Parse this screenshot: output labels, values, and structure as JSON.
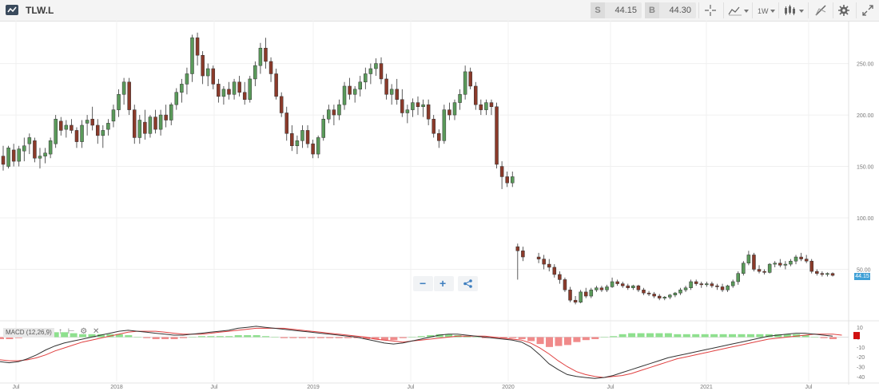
{
  "header": {
    "symbol": "TLW.L",
    "sell_tag": "S",
    "sell_price": "44.15",
    "buy_tag": "B",
    "buy_price": "44.30",
    "interval_label": "1W",
    "icons": [
      "crosshair-icon",
      "compare-icon",
      "interval-icon",
      "candlestick-type-icon",
      "draw-icon",
      "settings-icon",
      "fullscreen-icon"
    ]
  },
  "colors": {
    "up": "#5a9a5a",
    "down": "#8b3a2a",
    "macd_line": "#333333",
    "signal_line": "#e04040",
    "hist_pos": "#8ee08e",
    "hist_neg": "#f08a8a",
    "last_price_tag": "#3fa0d6"
  },
  "price_tag": "44.15",
  "zoom_controls": {
    "zoom_out": "−",
    "zoom_in": "+",
    "share_icon": "share-icon"
  },
  "macd_legend": {
    "label": "MACD (12,26,9)"
  },
  "chart_data": [
    {
      "type": "candlestick",
      "timeframe": "weekly",
      "x_ticks": [
        "Jul",
        "2018",
        "Jul",
        "2019",
        "Jul",
        "2020",
        "Jul",
        "2021",
        "Jul"
      ],
      "y_ticks": [
        "250.00",
        "200.00",
        "150.00",
        "100.00",
        "50.00"
      ],
      "ylim": [
        0,
        290
      ],
      "grid": true,
      "y_axis_position": "right",
      "last_price": 44.15,
      "ohlc": [
        [
          160,
          170,
          146,
          152
        ],
        [
          150,
          170,
          148,
          168
        ],
        [
          166,
          172,
          150,
          155
        ],
        [
          155,
          170,
          150,
          167
        ],
        [
          165,
          178,
          155,
          170
        ],
        [
          172,
          182,
          162,
          178
        ],
        [
          175,
          178,
          154,
          158
        ],
        [
          158,
          168,
          148,
          160
        ],
        [
          160,
          168,
          153,
          163
        ],
        [
          162,
          178,
          158,
          175
        ],
        [
          172,
          200,
          168,
          196
        ],
        [
          194,
          198,
          180,
          185
        ],
        [
          186,
          195,
          178,
          190
        ],
        [
          190,
          196,
          182,
          185
        ],
        [
          185,
          188,
          168,
          174
        ],
        [
          174,
          195,
          168,
          190
        ],
        [
          192,
          200,
          180,
          195
        ],
        [
          196,
          208,
          185,
          190
        ],
        [
          190,
          196,
          172,
          180
        ],
        [
          180,
          190,
          168,
          185
        ],
        [
          186,
          196,
          180,
          192
        ],
        [
          194,
          210,
          188,
          205
        ],
        [
          205,
          225,
          198,
          220
        ],
        [
          220,
          236,
          210,
          232
        ],
        [
          232,
          236,
          200,
          205
        ],
        [
          205,
          210,
          172,
          178
        ],
        [
          178,
          200,
          172,
          195
        ],
        [
          193,
          205,
          176,
          182
        ],
        [
          182,
          200,
          178,
          198
        ],
        [
          198,
          205,
          182,
          186
        ],
        [
          186,
          205,
          180,
          200
        ],
        [
          200,
          210,
          188,
          195
        ],
        [
          195,
          212,
          190,
          210
        ],
        [
          210,
          226,
          205,
          222
        ],
        [
          222,
          235,
          212,
          230
        ],
        [
          230,
          246,
          220,
          240
        ],
        [
          240,
          278,
          232,
          275
        ],
        [
          275,
          280,
          248,
          258
        ],
        [
          258,
          262,
          230,
          238
        ],
        [
          238,
          250,
          228,
          245
        ],
        [
          245,
          248,
          225,
          230
        ],
        [
          230,
          235,
          212,
          218
        ],
        [
          218,
          228,
          210,
          225
        ],
        [
          225,
          232,
          215,
          220
        ],
        [
          220,
          235,
          215,
          232
        ],
        [
          232,
          238,
          218,
          222
        ],
        [
          222,
          232,
          210,
          215
        ],
        [
          215,
          238,
          212,
          235
        ],
        [
          235,
          252,
          228,
          248
        ],
        [
          248,
          270,
          240,
          265
        ],
        [
          265,
          275,
          245,
          252
        ],
        [
          252,
          256,
          232,
          240
        ],
        [
          240,
          245,
          215,
          218
        ],
        [
          218,
          222,
          198,
          202
        ],
        [
          202,
          208,
          175,
          182
        ],
        [
          182,
          190,
          165,
          170
        ],
        [
          170,
          180,
          162,
          175
        ],
        [
          175,
          190,
          168,
          185
        ],
        [
          185,
          190,
          168,
          172
        ],
        [
          172,
          176,
          158,
          162
        ],
        [
          162,
          180,
          158,
          178
        ],
        [
          178,
          200,
          175,
          196
        ],
        [
          196,
          210,
          192,
          205
        ],
        [
          205,
          210,
          190,
          200
        ],
        [
          200,
          215,
          195,
          210
        ],
        [
          210,
          232,
          205,
          228
        ],
        [
          228,
          236,
          215,
          220
        ],
        [
          220,
          228,
          212,
          225
        ],
        [
          225,
          238,
          218,
          232
        ],
        [
          232,
          246,
          225,
          240
        ],
        [
          240,
          250,
          230,
          245
        ],
        [
          245,
          255,
          238,
          250
        ],
        [
          250,
          256,
          230,
          235
        ],
        [
          235,
          240,
          215,
          220
        ],
        [
          220,
          230,
          210,
          225
        ],
        [
          225,
          235,
          210,
          215
        ],
        [
          215,
          225,
          198,
          202
        ],
        [
          202,
          210,
          192,
          205
        ],
        [
          205,
          216,
          198,
          212
        ],
        [
          212,
          218,
          200,
          208
        ],
        [
          208,
          215,
          198,
          210
        ],
        [
          210,
          215,
          190,
          196
        ],
        [
          196,
          200,
          178,
          182
        ],
        [
          182,
          186,
          168,
          175
        ],
        [
          175,
          210,
          172,
          205
        ],
        [
          205,
          212,
          195,
          200
        ],
        [
          200,
          215,
          195,
          212
        ],
        [
          212,
          225,
          205,
          220
        ],
        [
          220,
          248,
          215,
          242
        ],
        [
          242,
          246,
          225,
          228
        ],
        [
          228,
          232,
          205,
          210
        ],
        [
          210,
          215,
          200,
          205
        ],
        [
          205,
          215,
          200,
          212
        ],
        [
          212,
          215,
          200,
          208
        ],
        [
          208,
          212,
          148,
          152
        ],
        [
          150,
          155,
          128,
          140
        ],
        [
          140,
          145,
          130,
          134
        ],
        [
          134,
          145,
          130,
          140
        ],
        [
          72,
          75,
          40,
          68
        ],
        [
          68,
          72,
          58,
          62
        ],
        [
          62,
          66,
          56,
          60
        ],
        [
          60,
          64,
          50,
          55
        ],
        [
          55,
          60,
          48,
          52
        ],
        [
          52,
          55,
          42,
          45
        ],
        [
          45,
          48,
          36,
          40
        ],
        [
          40,
          42,
          28,
          30
        ],
        [
          30,
          33,
          18,
          20
        ],
        [
          20,
          24,
          16,
          18
        ],
        [
          18,
          30,
          17,
          28
        ],
        [
          28,
          32,
          22,
          24
        ],
        [
          24,
          32,
          22,
          30
        ],
        [
          30,
          34,
          28,
          32
        ],
        [
          32,
          34,
          28,
          30
        ],
        [
          30,
          35,
          28,
          33
        ],
        [
          33,
          42,
          32,
          38
        ],
        [
          38,
          40,
          34,
          36
        ],
        [
          36,
          38,
          32,
          34
        ],
        [
          34,
          36,
          30,
          32
        ],
        [
          32,
          35,
          30,
          34
        ],
        [
          34,
          35,
          28,
          30
        ],
        [
          30,
          32,
          25,
          27
        ],
        [
          27,
          29,
          24,
          26
        ],
        [
          26,
          28,
          22,
          24
        ],
        [
          24,
          26,
          20,
          22
        ],
        [
          22,
          24,
          20,
          23
        ],
        [
          23,
          26,
          21,
          25
        ],
        [
          25,
          28,
          23,
          27
        ],
        [
          27,
          32,
          25,
          30
        ],
        [
          30,
          34,
          28,
          32
        ],
        [
          32,
          40,
          30,
          38
        ],
        [
          38,
          40,
          34,
          36
        ],
        [
          36,
          38,
          32,
          35
        ],
        [
          35,
          38,
          33,
          36
        ],
        [
          36,
          38,
          32,
          34
        ],
        [
          34,
          36,
          30,
          33
        ],
        [
          33,
          36,
          28,
          30
        ],
        [
          30,
          35,
          28,
          34
        ],
        [
          34,
          40,
          32,
          38
        ],
        [
          38,
          48,
          35,
          46
        ],
        [
          46,
          58,
          44,
          56
        ],
        [
          56,
          68,
          54,
          64
        ],
        [
          64,
          66,
          48,
          50
        ],
        [
          50,
          54,
          46,
          48
        ],
        [
          48,
          50,
          45,
          47
        ],
        [
          47,
          56,
          46,
          55
        ],
        [
          55,
          58,
          52,
          56
        ],
        [
          56,
          60,
          52,
          54
        ],
        [
          54,
          58,
          50,
          55
        ],
        [
          55,
          60,
          53,
          58
        ],
        [
          58,
          64,
          55,
          62
        ],
        [
          62,
          66,
          58,
          60
        ],
        [
          60,
          64,
          56,
          58
        ],
        [
          58,
          60,
          46,
          48
        ],
        [
          48,
          50,
          44,
          46
        ],
        [
          46,
          48,
          43,
          45
        ],
        [
          45,
          47,
          43,
          46
        ],
        [
          46,
          47,
          43,
          44.15
        ]
      ]
    },
    {
      "type": "line",
      "indicator": "MACD (12,26,9)",
      "y_ticks": [
        "10",
        "0",
        "-10",
        "-20",
        "-30",
        "-40"
      ],
      "ylim": [
        -45,
        15
      ],
      "series": [
        {
          "role": "macd",
          "values": [
            -25,
            -26,
            -25,
            -22,
            -18,
            -13,
            -9,
            -6,
            -4,
            -2,
            0,
            2,
            4,
            6,
            7,
            6,
            5,
            4,
            3,
            2,
            2,
            3,
            4,
            5,
            6,
            7,
            9,
            10,
            11,
            10,
            9,
            8,
            7,
            6,
            5,
            4,
            3,
            2,
            1,
            0,
            -2,
            -4,
            -6,
            -7,
            -6,
            -4,
            -2,
            0,
            2,
            3,
            3,
            2,
            1,
            0,
            -1,
            -2,
            -3,
            -5,
            -10,
            -18,
            -27,
            -33,
            -38,
            -40,
            -41,
            -42,
            -41,
            -39,
            -36,
            -33,
            -30,
            -27,
            -24,
            -21,
            -19,
            -17,
            -15,
            -13,
            -11,
            -9,
            -7,
            -5,
            -3,
            -1,
            1,
            2,
            3,
            4,
            4,
            3,
            2,
            1
          ]
        },
        {
          "role": "signal",
          "values": [
            -23,
            -24,
            -24,
            -23,
            -21,
            -18,
            -14,
            -11,
            -8,
            -5,
            -3,
            -1,
            1,
            3,
            5,
            6,
            6,
            6,
            5,
            4,
            3,
            3,
            3,
            4,
            5,
            6,
            7,
            8,
            9,
            9,
            9,
            9,
            8,
            7,
            6,
            5,
            4,
            3,
            2,
            1,
            0,
            -2,
            -3,
            -4,
            -5,
            -4,
            -3,
            -2,
            -1,
            0,
            1,
            1,
            1,
            1,
            0,
            -1,
            -2,
            -3,
            -6,
            -11,
            -17,
            -24,
            -30,
            -35,
            -38,
            -40,
            -41,
            -40,
            -39,
            -37,
            -34,
            -31,
            -28,
            -25,
            -22,
            -20,
            -18,
            -16,
            -14,
            -12,
            -10,
            -8,
            -6,
            -4,
            -2,
            -1,
            0,
            1,
            2,
            3,
            3,
            3,
            2
          ]
        }
      ]
    }
  ]
}
